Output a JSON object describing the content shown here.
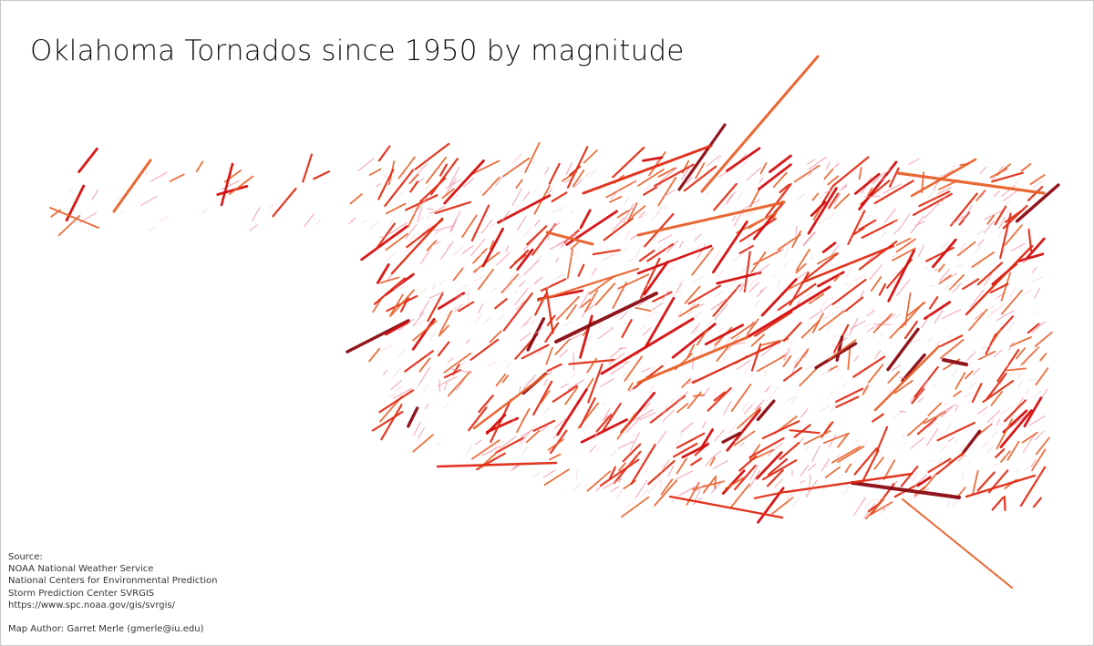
{
  "map": {
    "title": "Oklahoma Tornados since 1950 by magnitude",
    "source_label": "Source:",
    "sources": [
      "NOAA National Weather Service",
      "National Centers for Environmental Prediction",
      "Storm Prediction Center SVRGIS",
      "https://www.spc.noaa.gov/gis/svrgis/"
    ],
    "author": "Map Author: Garret Merle (gmerle@iu.edu)",
    "magnitude_colors": {
      "0": "#f7c6cc",
      "1": "#f08ea0",
      "2": "#e8602a",
      "3": "#e02a12",
      "4": "#d40d0d",
      "5": "#8b0a12"
    }
  }
}
